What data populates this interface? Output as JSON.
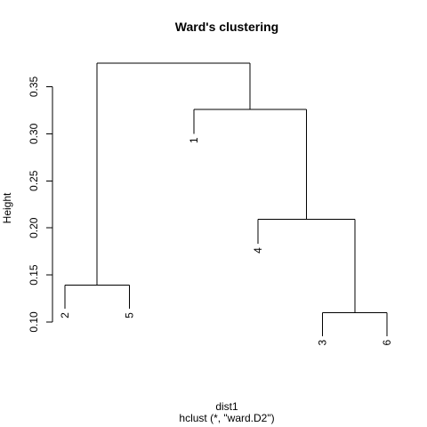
{
  "chart_data": {
    "type": "dendrogram",
    "title": "Ward's clustering",
    "ylabel": "Height",
    "xlabel": "dist1",
    "sublabel": "hclust (*, \"ward.D2\")",
    "ylim": [
      0.1,
      0.375
    ],
    "yticks": [
      0.1,
      0.15,
      0.2,
      0.25,
      0.3,
      0.35
    ],
    "ytick_labels": [
      "0.10",
      "0.15",
      "0.20",
      "0.25",
      "0.30",
      "0.35"
    ],
    "leaf_order": [
      "2",
      "5",
      "1",
      "4",
      "3",
      "6"
    ],
    "merges": [
      {
        "a": "3",
        "b": "6",
        "height": 0.11
      },
      {
        "a": "2",
        "b": "5",
        "height": 0.139
      },
      {
        "a": "4",
        "b": "3+6",
        "height": 0.209
      },
      {
        "a": "1",
        "b": "4+3+6",
        "height": 0.326
      },
      {
        "a": "2+5",
        "b": "1+4+3+6",
        "height": 0.375
      }
    ],
    "leaf_label_heights": {
      "2": 0.114,
      "5": 0.114,
      "1": 0.3,
      "4": 0.183,
      "3": 0.085,
      "6": 0.085
    },
    "color": "#000000"
  }
}
